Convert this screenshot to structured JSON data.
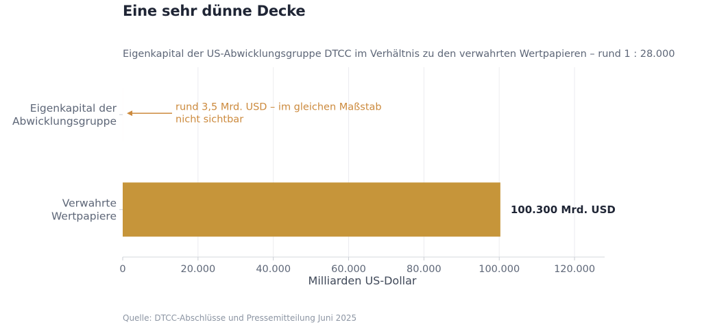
{
  "title": "Eine sehr dünne Decke",
  "subtitle": "Eigenkapital der US-Abwicklungsgruppe DTCC im Verhältnis zu den verwahrten Wertpapieren – rund 1 : 28.000",
  "source": "Quelle: DTCC-Abschlüsse und Pressemitteilung Juni 2025",
  "colors": {
    "bar": "#c6953a",
    "annotation": "#cc8a3d",
    "grid": "#ececef",
    "text": "#5d6677"
  },
  "chart_data": {
    "type": "bar",
    "orientation": "horizontal",
    "categories": [
      [
        "Eigenkapital der",
        "Abwicklungsgruppe"
      ],
      [
        "Verwahrte",
        "Wertpapiere"
      ]
    ],
    "values": [
      3.5,
      100300
    ],
    "data_labels": [
      "",
      "100.300 Mrd. USD"
    ],
    "xlabel": "Milliarden US-Dollar",
    "xlim": [
      0,
      128000
    ],
    "xticks": [
      0,
      20000,
      40000,
      60000,
      80000,
      100000,
      120000
    ],
    "xtick_labels": [
      "0",
      "20.000",
      "40.000",
      "60.000",
      "80.000",
      "100.000",
      "120.000"
    ],
    "grid": "vertical",
    "annotation": {
      "target_category": 0,
      "lines": [
        "rund 3,5 Mrd. USD – im gleichen Maßstab",
        "nicht sichtbar"
      ]
    }
  }
}
